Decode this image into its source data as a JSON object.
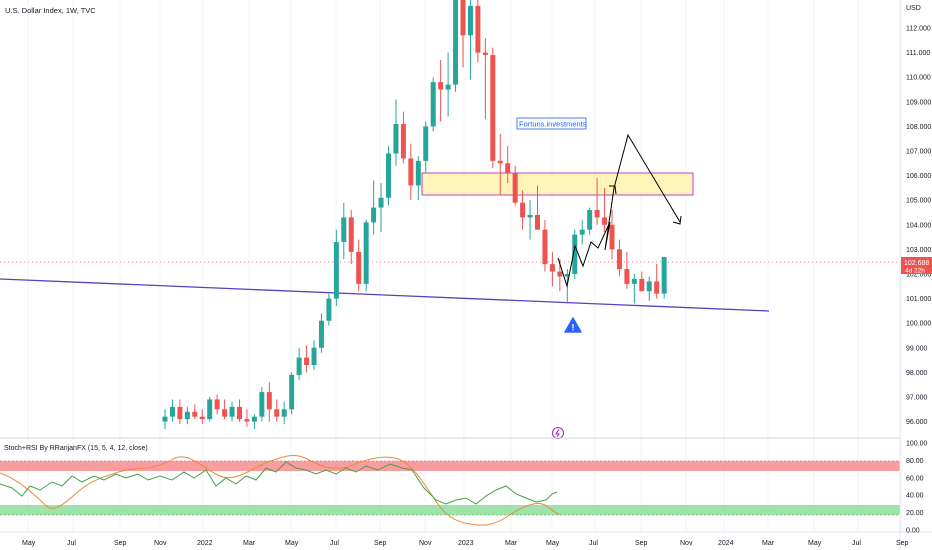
{
  "header": {
    "symbol_title": "U.S. Dollar Index, 1W, TVC"
  },
  "price_axis": {
    "currency_label": "USD",
    "ticks": [
      "112.000",
      "111.000",
      "110.000",
      "109.000",
      "108.000",
      "107.000",
      "106.000",
      "105.000",
      "104.000",
      "103.000",
      "102.000",
      "101.000",
      "100.000",
      "99.000",
      "98.000",
      "97.000",
      "96.000"
    ],
    "current_price": "102.688",
    "countdown": "4d 22h"
  },
  "annotation": {
    "label": "Fortuns.investments"
  },
  "indicator": {
    "title": "Stoch+RSI By RRanjanFX (15, 5, 4, 12, close)",
    "ticks": [
      "100.00",
      "80.00",
      "60.00",
      "40.00",
      "20.00",
      "0.00"
    ]
  },
  "time_axis": {
    "labels": [
      "May",
      "Jul",
      "Sep",
      "Nov",
      "2022",
      "Mar",
      "May",
      "Jul",
      "Sep",
      "Nov",
      "2023",
      "Mar",
      "May",
      "Jul",
      "Sep",
      "Nov",
      "2024",
      "Mar",
      "May",
      "Jul",
      "Sep"
    ]
  },
  "colors": {
    "up": "#26a69a",
    "down": "#ef5350",
    "trendline": "#5b3fbf",
    "zone_fill": "#fff5b8",
    "zone_border": "#c43fc8",
    "overbought": "#f77c80",
    "oversold": "#7ed98d",
    "stoch": "#e98a3c",
    "rsi": "#43a047",
    "warning": "#2962ff"
  },
  "icons": {
    "warning": "warning-triangle-icon",
    "lightning": "lightning-icon"
  },
  "chart_data": {
    "type": "candlestick",
    "title": "U.S. Dollar Index, 1W, TVC",
    "y_unit": "USD",
    "ylim": [
      95.7,
      113.0
    ],
    "candles": [
      {
        "t": "2021-09",
        "o": 96.0,
        "h": 96.5,
        "l": 95.7,
        "c": 96.2
      },
      {
        "t": "2021-09",
        "o": 96.2,
        "h": 96.9,
        "l": 96.0,
        "c": 96.6
      },
      {
        "t": "2021-10",
        "o": 96.6,
        "h": 96.9,
        "l": 95.9,
        "c": 96.1
      },
      {
        "t": "2021-10",
        "o": 96.1,
        "h": 96.6,
        "l": 95.9,
        "c": 96.4
      },
      {
        "t": "2021-10",
        "o": 96.4,
        "h": 96.7,
        "l": 96.1,
        "c": 96.2
      },
      {
        "t": "2021-11",
        "o": 96.2,
        "h": 96.5,
        "l": 95.9,
        "c": 96.1
      },
      {
        "t": "2021-11",
        "o": 96.1,
        "h": 97.0,
        "l": 96.0,
        "c": 96.9
      },
      {
        "t": "2021-11",
        "o": 96.9,
        "h": 97.1,
        "l": 96.3,
        "c": 96.5
      },
      {
        "t": "2021-12",
        "o": 96.5,
        "h": 96.9,
        "l": 96.1,
        "c": 96.2
      },
      {
        "t": "2021-12",
        "o": 96.2,
        "h": 96.8,
        "l": 96.0,
        "c": 96.6
      },
      {
        "t": "2021-12",
        "o": 96.6,
        "h": 96.9,
        "l": 96.0,
        "c": 96.1
      },
      {
        "t": "2022-01",
        "o": 96.1,
        "h": 96.5,
        "l": 95.8,
        "c": 96.0
      },
      {
        "t": "2022-01",
        "o": 96.0,
        "h": 96.3,
        "l": 95.7,
        "c": 96.2
      },
      {
        "t": "2022-01",
        "o": 96.2,
        "h": 97.4,
        "l": 96.0,
        "c": 97.2
      },
      {
        "t": "2022-02",
        "o": 97.2,
        "h": 97.6,
        "l": 96.0,
        "c": 96.5
      },
      {
        "t": "2022-02",
        "o": 96.5,
        "h": 96.9,
        "l": 96.0,
        "c": 96.2
      },
      {
        "t": "2022-02",
        "o": 96.2,
        "h": 96.8,
        "l": 95.9,
        "c": 96.5
      },
      {
        "t": "2022-03",
        "o": 96.5,
        "h": 98.0,
        "l": 96.3,
        "c": 97.9
      },
      {
        "t": "2022-03",
        "o": 97.9,
        "h": 99.0,
        "l": 97.7,
        "c": 98.6
      },
      {
        "t": "2022-03",
        "o": 98.6,
        "h": 99.1,
        "l": 98.0,
        "c": 98.3
      },
      {
        "t": "2022-04",
        "o": 98.3,
        "h": 99.3,
        "l": 98.1,
        "c": 99.0
      },
      {
        "t": "2022-04",
        "o": 99.0,
        "h": 100.4,
        "l": 98.8,
        "c": 100.1
      },
      {
        "t": "2022-04",
        "o": 100.1,
        "h": 101.2,
        "l": 99.9,
        "c": 101.0
      },
      {
        "t": "2022-05",
        "o": 101.0,
        "h": 103.8,
        "l": 100.7,
        "c": 103.3
      },
      {
        "t": "2022-05",
        "o": 103.3,
        "h": 104.9,
        "l": 102.6,
        "c": 104.3
      },
      {
        "t": "2022-05",
        "o": 104.3,
        "h": 104.6,
        "l": 102.4,
        "c": 102.9
      },
      {
        "t": "2022-06",
        "o": 102.9,
        "h": 103.4,
        "l": 101.3,
        "c": 101.6
      },
      {
        "t": "2022-06",
        "o": 101.6,
        "h": 104.2,
        "l": 101.3,
        "c": 104.1
      },
      {
        "t": "2022-06",
        "o": 104.1,
        "h": 105.8,
        "l": 103.6,
        "c": 104.7
      },
      {
        "t": "2022-07",
        "o": 104.7,
        "h": 105.7,
        "l": 103.7,
        "c": 105.1
      },
      {
        "t": "2022-07",
        "o": 105.1,
        "h": 107.2,
        "l": 104.8,
        "c": 106.9
      },
      {
        "t": "2022-07",
        "o": 106.9,
        "h": 109.1,
        "l": 106.4,
        "c": 108.1
      },
      {
        "t": "2022-08",
        "o": 108.1,
        "h": 108.6,
        "l": 106.5,
        "c": 106.7
      },
      {
        "t": "2022-08",
        "o": 106.7,
        "h": 107.3,
        "l": 105.0,
        "c": 105.6
      },
      {
        "t": "2022-08",
        "o": 105.6,
        "h": 106.8,
        "l": 105.0,
        "c": 106.6
      },
      {
        "t": "2022-09",
        "o": 106.6,
        "h": 108.2,
        "l": 106.1,
        "c": 108.0
      },
      {
        "t": "2022-09",
        "o": 108.0,
        "h": 110.0,
        "l": 107.8,
        "c": 109.8
      },
      {
        "t": "2022-09",
        "o": 109.8,
        "h": 110.7,
        "l": 108.2,
        "c": 109.5
      },
      {
        "t": "2022-10",
        "o": 109.5,
        "h": 111.0,
        "l": 108.4,
        "c": 109.7
      },
      {
        "t": "2022-10",
        "o": 109.7,
        "h": 114.8,
        "l": 109.4,
        "c": 113.2
      },
      {
        "t": "2022-10",
        "o": 113.2,
        "h": 113.6,
        "l": 110.4,
        "c": 111.7
      },
      {
        "t": "2022-10",
        "o": 111.7,
        "h": 113.3,
        "l": 109.9,
        "c": 112.9
      },
      {
        "t": "2022-11",
        "o": 112.9,
        "h": 113.4,
        "l": 110.6,
        "c": 111.0
      },
      {
        "t": "2022-11",
        "o": 111.0,
        "h": 111.6,
        "l": 108.3,
        "c": 110.9
      },
      {
        "t": "2022-11",
        "o": 110.9,
        "h": 111.2,
        "l": 106.3,
        "c": 106.6
      },
      {
        "t": "2022-11",
        "o": 106.6,
        "h": 107.7,
        "l": 105.2,
        "c": 106.5
      },
      {
        "t": "2022-12",
        "o": 106.5,
        "h": 107.2,
        "l": 105.7,
        "c": 106.1
      },
      {
        "t": "2022-12",
        "o": 106.1,
        "h": 106.4,
        "l": 104.8,
        "c": 104.9
      },
      {
        "t": "2022-12",
        "o": 104.9,
        "h": 105.4,
        "l": 103.8,
        "c": 104.3
      },
      {
        "t": "2022-12",
        "o": 104.3,
        "h": 105.0,
        "l": 103.4,
        "c": 104.4
      },
      {
        "t": "2023-01",
        "o": 104.4,
        "h": 105.6,
        "l": 103.9,
        "c": 103.8
      },
      {
        "t": "2023-01",
        "o": 103.8,
        "h": 104.2,
        "l": 102.1,
        "c": 102.4
      },
      {
        "t": "2023-01",
        "o": 102.4,
        "h": 102.9,
        "l": 101.5,
        "c": 102.1
      },
      {
        "t": "2023-01",
        "o": 102.1,
        "h": 102.6,
        "l": 101.3,
        "c": 101.9
      },
      {
        "t": "2023-02",
        "o": 101.9,
        "h": 102.2,
        "l": 100.8,
        "c": 102.0
      },
      {
        "t": "2023-02",
        "o": 102.0,
        "h": 103.8,
        "l": 101.8,
        "c": 103.6
      },
      {
        "t": "2023-02",
        "o": 103.6,
        "h": 104.2,
        "l": 103.2,
        "c": 103.8
      },
      {
        "t": "2023-02",
        "o": 103.8,
        "h": 104.7,
        "l": 103.6,
        "c": 104.6
      },
      {
        "t": "2023-03",
        "o": 104.6,
        "h": 105.9,
        "l": 104.0,
        "c": 104.3
      },
      {
        "t": "2023-03",
        "o": 104.3,
        "h": 105.5,
        "l": 103.7,
        "c": 104.0
      },
      {
        "t": "2023-03",
        "o": 104.0,
        "h": 104.6,
        "l": 102.6,
        "c": 103.0
      },
      {
        "t": "2023-03",
        "o": 103.0,
        "h": 103.4,
        "l": 101.9,
        "c": 102.2
      },
      {
        "t": "2023-04",
        "o": 102.2,
        "h": 102.9,
        "l": 101.4,
        "c": 101.6
      },
      {
        "t": "2023-04",
        "o": 101.6,
        "h": 102.0,
        "l": 100.8,
        "c": 101.8
      },
      {
        "t": "2023-04",
        "o": 101.8,
        "h": 102.1,
        "l": 101.3,
        "c": 101.3
      },
      {
        "t": "2023-04",
        "o": 101.3,
        "h": 101.9,
        "l": 100.9,
        "c": 101.7
      },
      {
        "t": "2023-05",
        "o": 101.7,
        "h": 102.4,
        "l": 101.0,
        "c": 101.2
      },
      {
        "t": "2023-05",
        "o": 101.2,
        "h": 102.7,
        "l": 101.0,
        "c": 102.69
      }
    ],
    "resistance_zone": {
      "from": 105.3,
      "to": 106.2
    },
    "current_price": 102.688
  }
}
